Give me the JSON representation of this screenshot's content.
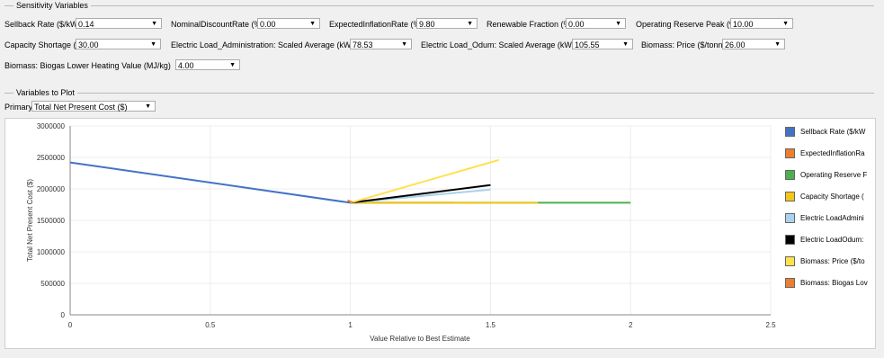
{
  "sensitivity": {
    "group_title": "Sensitivity Variables",
    "row1": [
      {
        "label": "Sellback Rate ($/kWh)",
        "value": "0.14"
      },
      {
        "label": "NominalDiscountRate (%)",
        "value": "0.00"
      },
      {
        "label": "ExpectedInflationRate (%)",
        "value": "9.80"
      },
      {
        "label": "Renewable Fraction (%)",
        "value": "0.00"
      },
      {
        "label": "Operating Reserve Peak (%)",
        "value": "10.00"
      }
    ],
    "row2": [
      {
        "label": "Capacity Shortage (%)",
        "value": "30.00"
      },
      {
        "label": "Electric Load_Administration: Scaled Average (kWh/d)",
        "value": "78.53"
      },
      {
        "label": "Electric Load_Odum: Scaled Average (kWh/d)",
        "value": "105.55"
      },
      {
        "label": "Biomass: Price ($/tonne)",
        "value": "26.00"
      }
    ],
    "row3": [
      {
        "label": "Biomass: Biogas Lower Heating Value (MJ/kg)",
        "value": "4.00"
      }
    ]
  },
  "plot_vars": {
    "group_title": "Variables to Plot",
    "primary_label": "Primary",
    "primary_value": "Total Net Present Cost ($)"
  },
  "chart_data": {
    "type": "line",
    "xlabel": "Value Relative to Best Estimate",
    "ylabel": "Total Net Present Cost ($)",
    "xlim": [
      0,
      2.5
    ],
    "ylim": [
      0,
      3000000
    ],
    "x_ticks": [
      "0",
      "0.5",
      "1",
      "1.5",
      "2",
      "2.5"
    ],
    "y_ticks": [
      "0",
      "500000",
      "1000000",
      "1500000",
      "2000000",
      "2500000",
      "3000000"
    ],
    "grid": true,
    "legend_position": "right",
    "series": [
      {
        "name": "Sellback Rate ($/kW",
        "color": "#4472c4",
        "x": [
          0,
          1
        ],
        "y": [
          2420000,
          1780000
        ]
      },
      {
        "name": "ExpectedInflationRa",
        "color": "#ed7d31",
        "x": [
          1,
          1.37
        ],
        "y": [
          1780000,
          1780000
        ]
      },
      {
        "name": "Operating Reserve F",
        "color": "#4caf50",
        "x": [
          1,
          2
        ],
        "y": [
          1780000,
          1780000
        ]
      },
      {
        "name": "Capacity Shortage (",
        "color": "#f5c518",
        "x": [
          1,
          1.67
        ],
        "y": [
          1780000,
          1780000
        ]
      },
      {
        "name": "Electric LoadAdmini",
        "color": "#a9d2ec",
        "x": [
          1,
          1.5
        ],
        "y": [
          1780000,
          1990000
        ]
      },
      {
        "name": "Electric LoadOdum:",
        "color": "#000000",
        "x": [
          1,
          1.5
        ],
        "y": [
          1780000,
          2060000
        ]
      },
      {
        "name": "Biomass: Price ($/to",
        "color": "#ffe14d",
        "x": [
          1,
          1.53
        ],
        "y": [
          1780000,
          2460000
        ]
      },
      {
        "name": "Biomass: Biogas Lov",
        "color": "#ed7d31",
        "x": [
          0.99,
          1.01
        ],
        "y": [
          1820000,
          1780000
        ]
      }
    ]
  }
}
